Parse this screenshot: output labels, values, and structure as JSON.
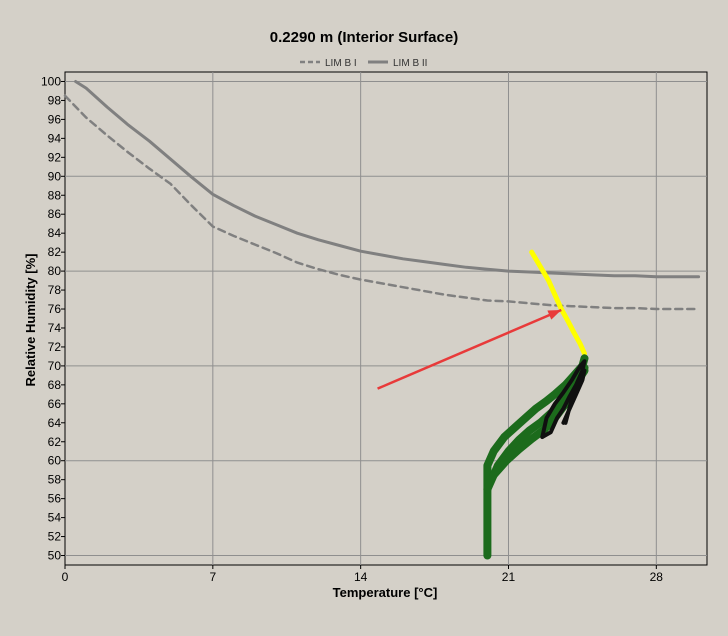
{
  "chart_data": {
    "type": "line",
    "title": "0.2290 m (Interior Surface)",
    "xlabel": "Temperature [°C]",
    "ylabel": "Relative Humidity [%]",
    "xlim": [
      0,
      30.4
    ],
    "ylim": [
      49,
      101
    ],
    "x_ticks": [
      0,
      7,
      14,
      21,
      28
    ],
    "y_ticks": [
      50,
      52,
      54,
      56,
      58,
      60,
      62,
      64,
      66,
      68,
      70,
      72,
      74,
      76,
      78,
      80,
      82,
      84,
      86,
      88,
      90,
      92,
      94,
      96,
      98,
      100
    ],
    "grid": true,
    "legend_position": "top-center",
    "colors": {
      "background": "#d4d0c8",
      "plot_background": "#d4d0c8",
      "grid": "#8f8f8f",
      "limit_lines": "#808080",
      "trajectory_yellow": "#ffff00",
      "trajectory_green": "#1c6b1c",
      "trajectory_black": "#101010",
      "arrow": "#e83a3a"
    },
    "series": [
      {
        "name": "LIM B I",
        "style": "dashed",
        "x": [
          0,
          1,
          2,
          3,
          4,
          5,
          6,
          7,
          8,
          9,
          10,
          11,
          12,
          13,
          14,
          15,
          16,
          17,
          18,
          19,
          20,
          21,
          22,
          23,
          24,
          25,
          26,
          27,
          28,
          29,
          30
        ],
        "y": [
          98.5,
          96.2,
          94.3,
          92.5,
          90.8,
          89.2,
          86.9,
          84.7,
          83.7,
          82.8,
          81.9,
          80.9,
          80.2,
          79.6,
          79.1,
          78.7,
          78.3,
          77.9,
          77.5,
          77.2,
          76.9,
          76.8,
          76.6,
          76.4,
          76.3,
          76.2,
          76.1,
          76.1,
          76.0,
          76.0,
          76.0
        ]
      },
      {
        "name": "LIM B II",
        "style": "solid",
        "x": [
          0.5,
          1,
          2,
          3,
          4,
          5,
          6,
          7,
          8,
          9,
          10,
          11,
          12,
          13,
          14,
          15,
          16,
          17,
          18,
          19,
          20,
          21,
          22,
          23,
          24,
          25,
          26,
          27,
          28,
          29,
          30
        ],
        "y": [
          100,
          99.3,
          97.3,
          95.4,
          93.7,
          91.8,
          89.9,
          88.1,
          86.9,
          85.8,
          84.9,
          84.0,
          83.3,
          82.7,
          82.1,
          81.7,
          81.3,
          81.0,
          80.7,
          80.4,
          80.2,
          80.0,
          79.9,
          79.8,
          79.7,
          79.6,
          79.5,
          79.5,
          79.4,
          79.4,
          79.4
        ]
      },
      {
        "name": "",
        "style": "trajectory-yellow",
        "x": [
          22.1,
          22.5,
          22.9,
          23.2,
          23.5,
          23.8,
          24.1,
          24.4,
          24.6
        ],
        "y": [
          82.0,
          80.5,
          79.0,
          77.5,
          76.0,
          74.8,
          73.5,
          72.3,
          71.3
        ]
      },
      {
        "name": "",
        "style": "trajectory-green",
        "x": [
          20.0,
          20.0,
          20.3,
          20.8,
          21.3,
          21.8,
          22.3,
          22.8,
          23.2,
          23.7,
          24.1,
          24.5,
          24.6
        ],
        "y": [
          50.0,
          59.5,
          61.0,
          62.5,
          63.5,
          64.5,
          65.5,
          66.3,
          67.0,
          68.0,
          69.0,
          70.0,
          70.8
        ]
      },
      {
        "name": "",
        "style": "trajectory-green",
        "x": [
          20.0,
          20.5,
          21.0,
          21.5,
          22.0,
          22.5,
          23.0,
          23.5,
          24.0,
          24.6
        ],
        "y": [
          57.0,
          59.5,
          61.0,
          62.2,
          63.2,
          64.0,
          65.0,
          66.0,
          67.5,
          69.5
        ]
      },
      {
        "name": "",
        "style": "trajectory-green",
        "x": [
          20.3,
          20.9,
          21.5,
          22.1,
          22.7,
          23.2,
          23.7,
          24.2,
          24.6
        ],
        "y": [
          58.5,
          60.0,
          61.2,
          62.3,
          63.3,
          64.5,
          66.0,
          67.8,
          69.8
        ]
      },
      {
        "name": "",
        "style": "trajectory-black",
        "x": [
          22.6,
          23.0,
          23.3,
          23.6,
          23.9,
          24.2,
          24.5,
          24.6,
          24.4,
          24.0,
          23.6,
          23.2,
          22.8,
          22.6
        ],
        "y": [
          62.5,
          63.0,
          64.5,
          65.5,
          66.8,
          68.0,
          69.5,
          70.5,
          70.0,
          68.5,
          67.2,
          66.0,
          64.5,
          62.5
        ]
      },
      {
        "name": "",
        "style": "trajectory-black",
        "x": [
          23.6,
          23.9,
          24.2,
          24.5,
          24.6,
          24.3,
          24.0,
          23.7
        ],
        "y": [
          64.0,
          65.5,
          67.0,
          68.5,
          69.5,
          68.0,
          66.5,
          64.0
        ]
      }
    ],
    "annotations": [
      {
        "type": "arrow",
        "x1": 14.8,
        "y1": 67.6,
        "x2": 23.5,
        "y2": 75.9
      }
    ]
  }
}
